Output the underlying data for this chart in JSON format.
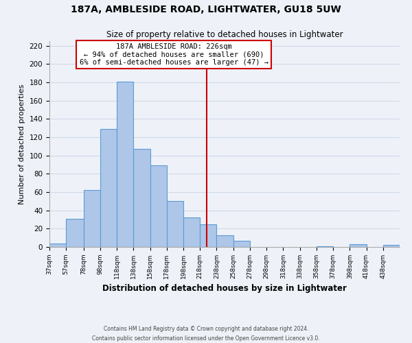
{
  "title": "187A, AMBLESIDE ROAD, LIGHTWATER, GU18 5UW",
  "subtitle": "Size of property relative to detached houses in Lightwater",
  "xlabel": "Distribution of detached houses by size in Lightwater",
  "ylabel": "Number of detached properties",
  "bar_left_edges": [
    37,
    57,
    78,
    98,
    118,
    138,
    158,
    178,
    198,
    218,
    238,
    258,
    278,
    298,
    318,
    338,
    358,
    378,
    398,
    418,
    438
  ],
  "bar_heights": [
    4,
    31,
    62,
    129,
    181,
    107,
    89,
    50,
    32,
    25,
    13,
    7,
    0,
    0,
    0,
    0,
    1,
    0,
    3,
    0,
    2
  ],
  "bar_widths": [
    20,
    21,
    20,
    20,
    20,
    20,
    20,
    20,
    20,
    20,
    20,
    20,
    20,
    20,
    20,
    20,
    20,
    20,
    20,
    20,
    20
  ],
  "bar_color": "#aec6e8",
  "bar_edgecolor": "#5b9bd5",
  "property_line_x": 226,
  "property_line_color": "#cc0000",
  "ylim": [
    0,
    225
  ],
  "yticks": [
    0,
    20,
    40,
    60,
    80,
    100,
    120,
    140,
    160,
    180,
    200,
    220
  ],
  "xtick_labels": [
    "37sqm",
    "57sqm",
    "78sqm",
    "98sqm",
    "118sqm",
    "138sqm",
    "158sqm",
    "178sqm",
    "198sqm",
    "218sqm",
    "238sqm",
    "258sqm",
    "278sqm",
    "298sqm",
    "318sqm",
    "338sqm",
    "358sqm",
    "378sqm",
    "398sqm",
    "418sqm",
    "438sqm"
  ],
  "annotation_title": "187A AMBLESIDE ROAD: 226sqm",
  "annotation_line1": "← 94% of detached houses are smaller (690)",
  "annotation_line2": "6% of semi-detached houses are larger (47) →",
  "footer_line1": "Contains HM Land Registry data © Crown copyright and database right 2024.",
  "footer_line2": "Contains public sector information licensed under the Open Government Licence v3.0.",
  "grid_color": "#d0d8e8",
  "background_color": "#eef2f8"
}
